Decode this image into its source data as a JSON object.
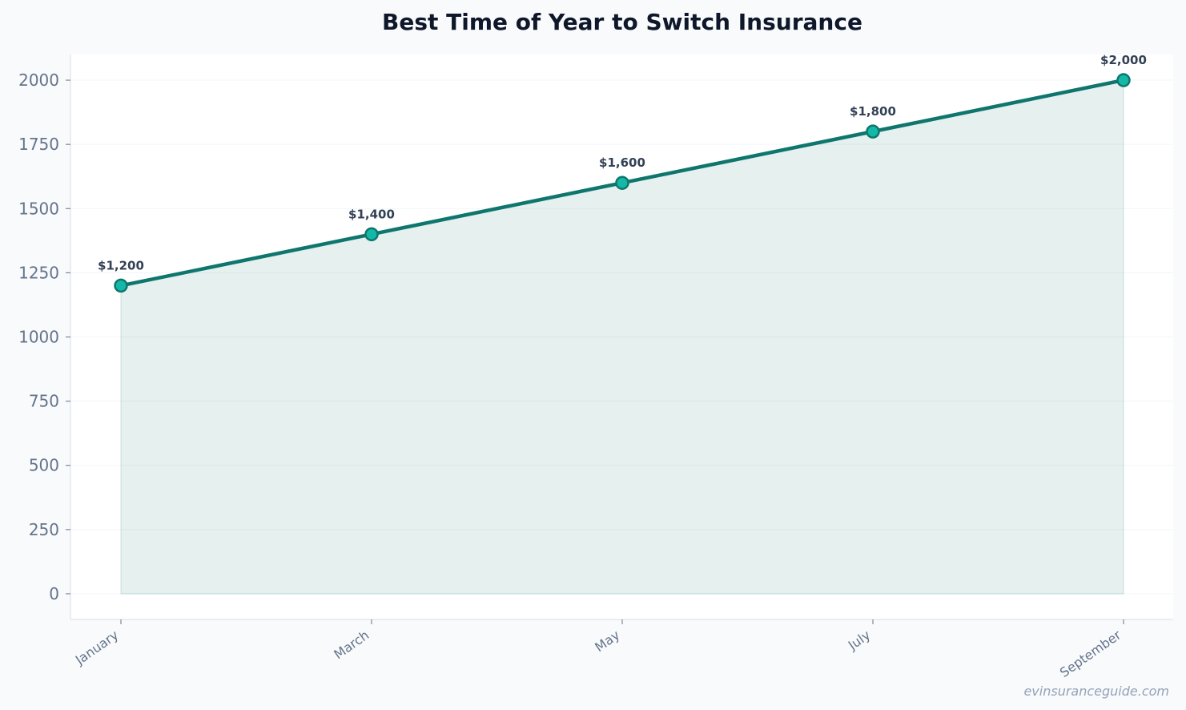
{
  "chart_data": {
    "type": "area",
    "title": "Best Time of Year to Switch Insurance",
    "xlabel": "",
    "ylabel": "",
    "categories": [
      "January",
      "March",
      "May",
      "July",
      "September"
    ],
    "values": [
      1200,
      1400,
      1600,
      1800,
      2000
    ],
    "data_labels": [
      "$1,200",
      "$1,400",
      "$1,600",
      "$1,800",
      "$2,000"
    ],
    "yticks": [
      0,
      250,
      500,
      750,
      1000,
      1250,
      1500,
      1750,
      2000
    ],
    "ylim": [
      -100,
      2100
    ],
    "grid": true,
    "legend": "none",
    "colors": {
      "line": "#0f766e",
      "marker_fill": "#14b8a6",
      "fill": "#0f766e",
      "background": "#f8fafc",
      "plot_background": "#ffffff"
    }
  },
  "watermark": "evinsuranceguide.com"
}
